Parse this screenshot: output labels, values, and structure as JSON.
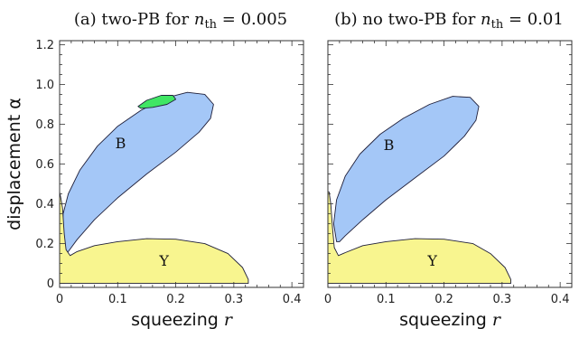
{
  "colors": {
    "region_B": "#a4c7f7",
    "region_Y": "#f8f58f",
    "region_two_pb": "#40e664",
    "outline": "#1f1f3a"
  },
  "chart_data": [
    {
      "type": "area",
      "title": "(a) two-PB for ",
      "title_var": "n",
      "title_sub": "th",
      "title_value": " = 0.005",
      "xlabel": "squeezing ",
      "xlabel_var": "r",
      "ylabel": "displacement α",
      "xlim": [
        0,
        0.42
      ],
      "ylim": [
        -0.02,
        1.22
      ],
      "xticks": [
        "0",
        "0.1",
        "0.2",
        "0.3",
        "0.4"
      ],
      "yticks": [
        "0",
        "0.2",
        "0.4",
        "0.6",
        "0.8",
        "1.0",
        "1.2"
      ],
      "regions": [
        {
          "label": "B",
          "label_pos": [
            0.105,
            0.68
          ],
          "color_key": "region_B",
          "outline": [
            [
              0.01,
              0.16
            ],
            [
              0.004,
              0.25
            ],
            [
              0.006,
              0.35
            ],
            [
              0.015,
              0.45
            ],
            [
              0.035,
              0.57
            ],
            [
              0.065,
              0.69
            ],
            [
              0.1,
              0.79
            ],
            [
              0.14,
              0.87
            ],
            [
              0.18,
              0.93
            ],
            [
              0.22,
              0.96
            ],
            [
              0.25,
              0.95
            ],
            [
              0.265,
              0.9
            ],
            [
              0.26,
              0.83
            ],
            [
              0.24,
              0.76
            ],
            [
              0.2,
              0.66
            ],
            [
              0.15,
              0.55
            ],
            [
              0.1,
              0.43
            ],
            [
              0.06,
              0.32
            ],
            [
              0.03,
              0.22
            ],
            [
              0.015,
              0.16
            ],
            [
              0.01,
              0.16
            ]
          ]
        },
        {
          "label": "",
          "color_key": "region_two_pb",
          "outline": [
            [
              0.135,
              0.89
            ],
            [
              0.15,
              0.92
            ],
            [
              0.175,
              0.945
            ],
            [
              0.195,
              0.945
            ],
            [
              0.2,
              0.925
            ],
            [
              0.185,
              0.9
            ],
            [
              0.16,
              0.885
            ],
            [
              0.14,
              0.88
            ],
            [
              0.135,
              0.89
            ]
          ]
        },
        {
          "label": "Y",
          "label_pos": [
            0.18,
            0.09
          ],
          "color_key": "region_Y",
          "outline": [
            [
              0.002,
              0.43
            ],
            [
              0.005,
              0.38
            ],
            [
              0.008,
              0.25
            ],
            [
              0.011,
              0.17
            ],
            [
              0.018,
              0.14
            ],
            [
              0.03,
              0.16
            ],
            [
              0.06,
              0.19
            ],
            [
              0.1,
              0.21
            ],
            [
              0.15,
              0.225
            ],
            [
              0.2,
              0.222
            ],
            [
              0.25,
              0.2
            ],
            [
              0.29,
              0.15
            ],
            [
              0.315,
              0.08
            ],
            [
              0.325,
              0.02
            ],
            [
              0.325,
              0.0
            ],
            [
              0.0,
              0.0
            ],
            [
              0.0,
              0.46
            ],
            [
              0.002,
              0.43
            ]
          ]
        }
      ]
    },
    {
      "type": "area",
      "title": "(b) no two-PB for ",
      "title_var": "n",
      "title_sub": "th",
      "title_value": " = 0.01",
      "xlabel": "squeezing ",
      "xlabel_var": "r",
      "ylabel": "",
      "xlim": [
        0,
        0.42
      ],
      "ylim": [
        -0.02,
        1.22
      ],
      "xticks": [
        "0",
        "0.1",
        "0.2",
        "0.3",
        "0.4"
      ],
      "yticks": [],
      "regions": [
        {
          "label": "B",
          "label_pos": [
            0.105,
            0.67
          ],
          "color_key": "region_B",
          "outline": [
            [
              0.015,
              0.21
            ],
            [
              0.01,
              0.3
            ],
            [
              0.015,
              0.42
            ],
            [
              0.03,
              0.54
            ],
            [
              0.055,
              0.65
            ],
            [
              0.09,
              0.75
            ],
            [
              0.13,
              0.83
            ],
            [
              0.175,
              0.9
            ],
            [
              0.215,
              0.94
            ],
            [
              0.245,
              0.935
            ],
            [
              0.26,
              0.89
            ],
            [
              0.255,
              0.82
            ],
            [
              0.235,
              0.74
            ],
            [
              0.2,
              0.64
            ],
            [
              0.15,
              0.53
            ],
            [
              0.1,
              0.42
            ],
            [
              0.06,
              0.32
            ],
            [
              0.03,
              0.24
            ],
            [
              0.02,
              0.21
            ],
            [
              0.015,
              0.21
            ]
          ]
        },
        {
          "label": "Y",
          "label_pos": [
            0.18,
            0.09
          ],
          "color_key": "region_Y",
          "outline": [
            [
              0.002,
              0.46
            ],
            [
              0.005,
              0.4
            ],
            [
              0.008,
              0.28
            ],
            [
              0.011,
              0.18
            ],
            [
              0.018,
              0.14
            ],
            [
              0.03,
              0.155
            ],
            [
              0.06,
              0.19
            ],
            [
              0.1,
              0.21
            ],
            [
              0.15,
              0.225
            ],
            [
              0.2,
              0.222
            ],
            [
              0.25,
              0.2
            ],
            [
              0.28,
              0.15
            ],
            [
              0.305,
              0.08
            ],
            [
              0.315,
              0.02
            ],
            [
              0.315,
              0.0
            ],
            [
              0.0,
              0.0
            ],
            [
              0.0,
              0.46
            ],
            [
              0.002,
              0.46
            ]
          ]
        }
      ]
    }
  ]
}
